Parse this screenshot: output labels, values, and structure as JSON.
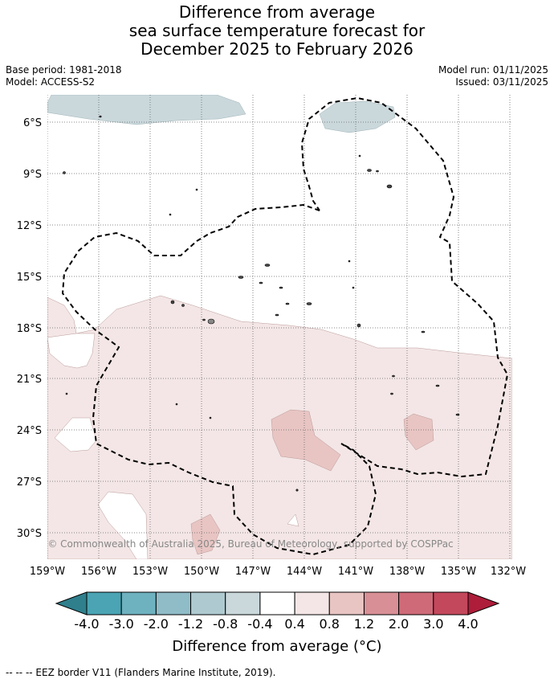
{
  "title_lines": [
    "Difference from average",
    "sea surface temperature forecast for",
    "December 2025 to February 2026"
  ],
  "base_period": "Base period: 1981-2018",
  "model": "Model: ACCESS-S2",
  "model_run": "Model run: 01/11/2025",
  "issued": "Issued: 03/11/2025",
  "map": {
    "lat_labels": [
      "6°S",
      "9°S",
      "12°S",
      "15°S",
      "18°S",
      "21°S",
      "24°S",
      "27°S",
      "30°S"
    ],
    "lon_labels": [
      "159°W",
      "156°W",
      "153°W",
      "150°W",
      "147°W",
      "144°W",
      "141°W",
      "138°W",
      "135°W",
      "132°W"
    ],
    "copyright": "© Commonwealth of Australia 2025, Bureau of Meteorology, supported by COSPPac"
  },
  "colorbar": {
    "tick_labels": [
      "-4.0",
      "-3.0",
      "-2.0",
      "-1.2",
      "-0.8",
      "-0.4",
      "0.4",
      "0.8",
      "1.2",
      "2.0",
      "3.0",
      "4.0"
    ],
    "colors": [
      "#2f7f8c",
      "#4aa4b4",
      "#6eb1bf",
      "#8fbcc7",
      "#aec9cf",
      "#cad8dc",
      "#ffffff",
      "#f4e6e6",
      "#e8c5c3",
      "#d98f96",
      "#cf6a78",
      "#c4485c",
      "#ae1d3a"
    ],
    "title": "Difference from average (°C)"
  },
  "footnote": "--  --  -- EEZ border V11 (Flanders Marine Institute, 2019)."
}
